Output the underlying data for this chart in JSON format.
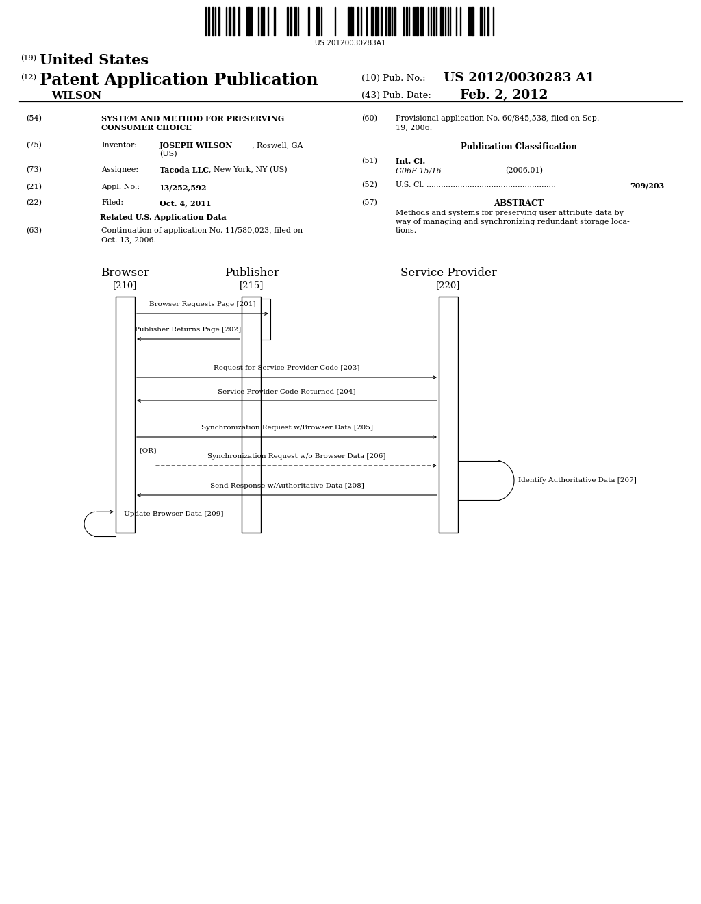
{
  "bg_color": "#ffffff",
  "barcode_text": "US 20120030283A1",
  "header_19": "(19)",
  "header_19_val": "United States",
  "header_12": "(12)",
  "header_12_val": "Patent Application Publication",
  "header_wilson": "WILSON",
  "header_10": "(10) Pub. No.:",
  "header_10_val": "US 2012/0030283 A1",
  "header_43": "(43) Pub. Date:",
  "header_43_val": "Feb. 2, 2012",
  "f54_label": "(54)",
  "f54_line1": "SYSTEM AND METHOD FOR PRESERVING",
  "f54_line2": "CONSUMER CHOICE",
  "f75_label": "(75)",
  "f75_sub": "Inventor:",
  "f75_name": "JOSEPH WILSON",
  "f75_loc": ", Roswell, GA",
  "f75_loc2": "(US)",
  "f73_label": "(73)",
  "f73_sub": "Assignee:",
  "f73_name": "Tacoda LLC",
  "f73_rest": ", New York, NY (US)",
  "f21_label": "(21)",
  "f21_sub": "Appl. No.:",
  "f21_val": "13/252,592",
  "f22_label": "(22)",
  "f22_sub": "Filed:",
  "f22_val": "Oct. 4, 2011",
  "related_title": "Related U.S. Application Data",
  "f63_label": "(63)",
  "f63_line1": "Continuation of application No. 11/580,023, filed on",
  "f63_line2": "Oct. 13, 2006.",
  "f60_label": "(60)",
  "f60_line1": "Provisional application No. 60/845,538, filed on Sep.",
  "f60_line2": "19, 2006.",
  "pub_class": "Publication Classification",
  "f51_label": "(51)",
  "f51_sub": "Int. Cl.",
  "f51_class": "G06F 15/16",
  "f51_year": "(2006.01)",
  "f52_label": "(52)",
  "f52_sub": "U.S. Cl.",
  "f52_dots": " ......................................................",
  "f52_val": "709/203",
  "f57_label": "(57)",
  "f57_title": "ABSTRACT",
  "f57_line1": "Methods and systems for preserving user attribute data by",
  "f57_line2": "way of managing and synchronizing redundant storage loca-",
  "f57_line3": "tions.",
  "seq_browser": "Browser",
  "seq_browser_id": "[210]",
  "seq_publisher": "Publisher",
  "seq_publisher_id": "[215]",
  "seq_sp": "Service Provider",
  "seq_sp_id": "[220]",
  "arrow201": "Browser Requests Page [201]",
  "arrow202": "Publisher Returns Page [202]",
  "arrow203": "Request for Service Provider Code [203]",
  "arrow204": "Service Provider Code Returned [204]",
  "arrow205": "Synchronization Request w/Browser Data [205]",
  "or_label": "{OR}",
  "arrow206": "Synchronization Request w/o Browser Data [206]",
  "arrow207": "Identify Authoritative Data [207]",
  "arrow208": "Send Response w/Authoritative Data [208]",
  "arrow209": "Update Browser Data [209]"
}
